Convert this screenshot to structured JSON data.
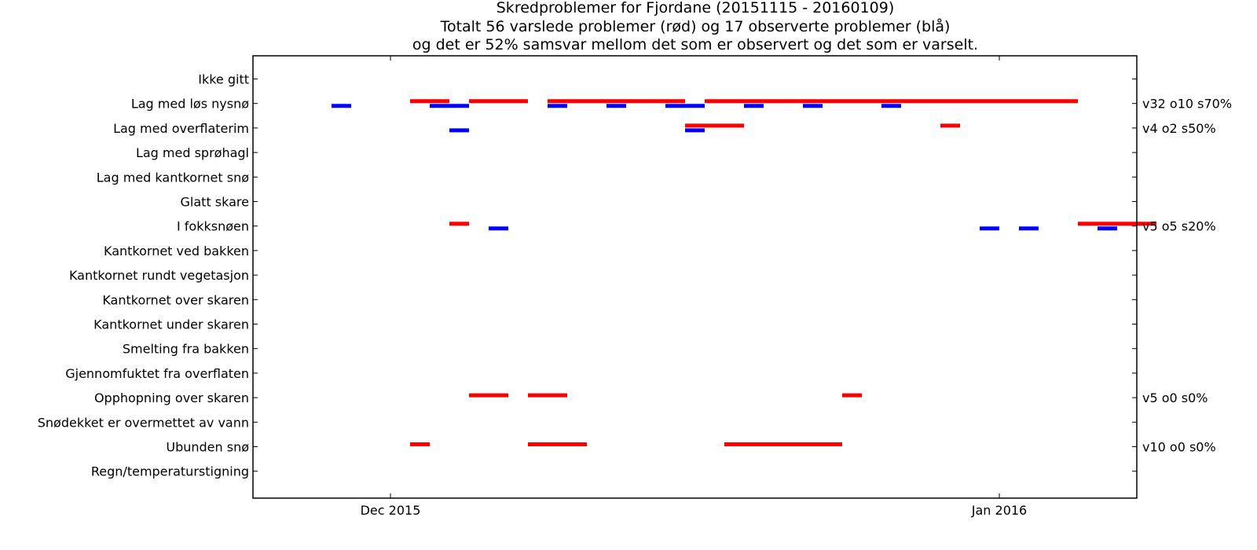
{
  "chart_data": {
    "type": "timeline",
    "title_lines": [
      "Skredproblemer for Fjordane (20151115 - 20160109)",
      "Totalt 56 varslede problemer (rød) og 17 observerte problemer (blå)",
      "og det er 52% samsvar mellom det som er observert og det som er varselt."
    ],
    "x_range": [
      "2015-11-24",
      "2016-01-08"
    ],
    "x_ticks": [
      {
        "date": "2015-12-01",
        "label": "Dec 2015"
      },
      {
        "date": "2016-01-01",
        "label": "Jan 2016"
      }
    ],
    "categories": [
      "Ikke gitt",
      "Lag med løs nysnø",
      "Lag med overflaterim",
      "Lag med sprøhagl",
      "Lag med kantkornet snø",
      "Glatt skare",
      "I fokksnøen",
      "Kantkornet ved bakken",
      "Kantkornet rundt vegetasjon",
      "Kantkornet over skaren",
      "Kantkornet under skaren",
      "Smelting fra bakken",
      "Gjennomfuktet fra overflaten",
      "Opphopning over skaren",
      "Snødekket er overmettet av vann",
      "Ubunden snø",
      "Regn/temperaturstigning"
    ],
    "right_labels": [
      {
        "category": "Lag med løs nysnø",
        "text": "v32 o10 s70%"
      },
      {
        "category": "Lag med overflaterim",
        "text": "v4 o2 s50%"
      },
      {
        "category": "I fokksnøen",
        "text": "v5 o5 s20%"
      },
      {
        "category": "Opphopning over skaren",
        "text": "v5 o0 s0%"
      },
      {
        "category": "Ubunden snø",
        "text": "v10 o0 s0%"
      }
    ],
    "series": [
      {
        "kind": "varslet",
        "color": "#ff0000",
        "segments": [
          {
            "category": "Lag med løs nysnø",
            "start": "2015-12-02",
            "end": "2015-12-04"
          },
          {
            "category": "Lag med løs nysnø",
            "start": "2015-12-05",
            "end": "2015-12-08"
          },
          {
            "category": "Lag med løs nysnø",
            "start": "2015-12-09",
            "end": "2015-12-16"
          },
          {
            "category": "Lag med løs nysnø",
            "start": "2015-12-17",
            "end": "2016-01-05"
          },
          {
            "category": "Lag med overflaterim",
            "start": "2015-12-16",
            "end": "2015-12-19"
          },
          {
            "category": "Lag med overflaterim",
            "start": "2015-12-29",
            "end": "2015-12-30"
          },
          {
            "category": "I fokksnøen",
            "start": "2015-12-04",
            "end": "2015-12-05"
          },
          {
            "category": "I fokksnøen",
            "start": "2016-01-05",
            "end": "2016-01-09"
          },
          {
            "category": "Opphopning over skaren",
            "start": "2015-12-05",
            "end": "2015-12-07"
          },
          {
            "category": "Opphopning over skaren",
            "start": "2015-12-08",
            "end": "2015-12-10"
          },
          {
            "category": "Opphopning over skaren",
            "start": "2015-12-24",
            "end": "2015-12-25"
          },
          {
            "category": "Ubunden snø",
            "start": "2015-12-02",
            "end": "2015-12-03"
          },
          {
            "category": "Ubunden snø",
            "start": "2015-12-08",
            "end": "2015-12-11"
          },
          {
            "category": "Ubunden snø",
            "start": "2015-12-18",
            "end": "2015-12-24"
          }
        ]
      },
      {
        "kind": "observert",
        "color": "#0000ff",
        "segments": [
          {
            "category": "Lag med løs nysnø",
            "start": "2015-11-28",
            "end": "2015-11-29"
          },
          {
            "category": "Lag med løs nysnø",
            "start": "2015-12-03",
            "end": "2015-12-05"
          },
          {
            "category": "Lag med løs nysnø",
            "start": "2015-12-09",
            "end": "2015-12-10"
          },
          {
            "category": "Lag med løs nysnø",
            "start": "2015-12-12",
            "end": "2015-12-13"
          },
          {
            "category": "Lag med løs nysnø",
            "start": "2015-12-15",
            "end": "2015-12-17"
          },
          {
            "category": "Lag med løs nysnø",
            "start": "2015-12-19",
            "end": "2015-12-20"
          },
          {
            "category": "Lag med løs nysnø",
            "start": "2015-12-22",
            "end": "2015-12-23"
          },
          {
            "category": "Lag med løs nysnø",
            "start": "2015-12-26",
            "end": "2015-12-27"
          },
          {
            "category": "Lag med overflaterim",
            "start": "2015-12-04",
            "end": "2015-12-05"
          },
          {
            "category": "Lag med overflaterim",
            "start": "2015-12-16",
            "end": "2015-12-17"
          },
          {
            "category": "I fokksnøen",
            "start": "2015-12-06",
            "end": "2015-12-07"
          },
          {
            "category": "I fokksnøen",
            "start": "2015-12-31",
            "end": "2016-01-01"
          },
          {
            "category": "I fokksnøen",
            "start": "2016-01-02",
            "end": "2016-01-03"
          },
          {
            "category": "I fokksnøen",
            "start": "2016-01-06",
            "end": "2016-01-07"
          }
        ]
      }
    ]
  }
}
